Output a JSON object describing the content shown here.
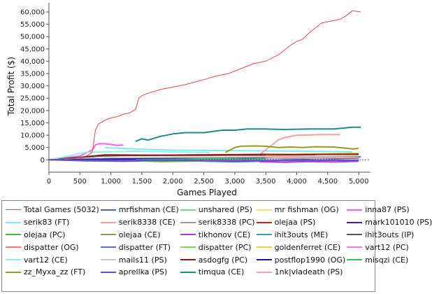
{
  "chart_data": {
    "type": "line",
    "xlabel": "Games Played",
    "ylabel": "Total Profit ($)",
    "xlim": [
      0,
      5100
    ],
    "ylim": [
      -2200,
      62000
    ],
    "x_ticks": [
      0,
      500,
      1000,
      1500,
      2000,
      2500,
      3000,
      3500,
      4000,
      4500,
      5000
    ],
    "x_tick_labels": [
      "0",
      "500",
      "1,000",
      "1,500",
      "2,000",
      "2,500",
      "3,000",
      "3,500",
      "4,000",
      "4,500",
      "5,000"
    ],
    "y_ticks": [
      0,
      5000,
      10000,
      15000,
      20000,
      25000,
      30000,
      35000,
      40000,
      45000,
      50000,
      55000,
      60000
    ],
    "y_tick_labels": [
      "0",
      "5,000",
      "10,000",
      "15,000",
      "20,000",
      "25,000",
      "30,000",
      "35,000",
      "40,000",
      "45,000",
      "50,000",
      "55,000",
      "60,000"
    ],
    "grid": false,
    "legend_position": "bottom",
    "series": [
      {
        "name": "Total Games (5032)",
        "color": "#e8474a",
        "x": [
          0,
          200,
          400,
          600,
          700,
          750,
          800,
          900,
          1000,
          1100,
          1200,
          1300,
          1400,
          1450,
          1500,
          1600,
          1800,
          2000,
          2200,
          2500,
          2700,
          2900,
          3100,
          3300,
          3500,
          3700,
          3800,
          3900,
          4000,
          4100,
          4200,
          4300,
          4400,
          4500,
          4700,
          4800,
          4900,
          5032
        ],
        "values": [
          0,
          0,
          500,
          1500,
          3000,
          12000,
          14500,
          16000,
          17000,
          17500,
          18500,
          19000,
          20500,
          25000,
          26000,
          27000,
          28500,
          29500,
          30500,
          32500,
          34000,
          35000,
          37000,
          39000,
          40000,
          42500,
          44500,
          46500,
          48000,
          49000,
          51500,
          53500,
          55500,
          56000,
          57000,
          58500,
          60500,
          60000
        ]
      },
      {
        "name": "mrfishman (CE)",
        "color": "#4a5be0",
        "x": [
          0,
          600,
          1200,
          2000,
          3000,
          3500,
          4000,
          4500,
          5032
        ],
        "values": [
          0,
          -400,
          -600,
          -300,
          -800,
          -500,
          200,
          700,
          1200
        ]
      },
      {
        "name": "unshared (PS)",
        "color": "#6fe36f",
        "x": [
          0,
          800,
          1600,
          2500,
          3400,
          4200,
          5000
        ],
        "values": [
          0,
          300,
          200,
          500,
          400,
          700,
          900
        ]
      },
      {
        "name": "mr fishman (OG)",
        "color": "#ffe066",
        "x": [
          0,
          1000,
          2000,
          3000,
          4000,
          5000
        ],
        "values": [
          0,
          500,
          600,
          700,
          900,
          1100
        ]
      },
      {
        "name": "inna87 (PS)",
        "color": "#ff5fe6",
        "x": [
          0,
          500,
          700,
          750,
          800,
          900,
          1000,
          1100,
          1200
        ],
        "values": [
          0,
          1500,
          4000,
          6000,
          6500,
          6500,
          6200,
          5800,
          6000
        ]
      },
      {
        "name": "serik83 (FT)",
        "color": "#7fe9ef",
        "x": [
          900,
          1000,
          1300,
          1600,
          2000,
          2500,
          3000,
          3500,
          4000,
          4600,
          4900
        ],
        "values": [
          5000,
          4800,
          4500,
          4200,
          3900,
          3800,
          3700,
          3600,
          3500,
          3300,
          3200
        ]
      },
      {
        "name": "serik8338 (CE)",
        "color": "#f5a0a0",
        "x": [
          3400,
          3600,
          3700,
          3800,
          4000,
          4200,
          4400,
          4600,
          4700
        ],
        "values": [
          2000,
          6000,
          8000,
          9000,
          10000,
          10100,
          10200,
          10200,
          10200
        ]
      },
      {
        "name": "serik8338 (PC)",
        "color": "#9a9a9a",
        "x": [
          0,
          500,
          1000,
          1500,
          2000,
          2500,
          3000,
          3500,
          4000,
          4500,
          5000
        ],
        "values": [
          0,
          300,
          600,
          700,
          800,
          900,
          1000,
          1100,
          1200,
          1300,
          1400
        ]
      },
      {
        "name": "olejaa (PS)",
        "color": "#d92020",
        "x": [
          1000,
          1500,
          2000,
          2500,
          3000,
          3500,
          4000,
          4300
        ],
        "values": [
          2000,
          1900,
          1800,
          1800,
          1900,
          1900,
          2000,
          2100
        ]
      },
      {
        "name": "mark101010 (PS)",
        "color": "#4a1aa8",
        "x": [
          0,
          700,
          1400,
          2200,
          3000,
          3800,
          4600,
          5000
        ],
        "values": [
          0,
          200,
          400,
          300,
          500,
          600,
          500,
          700
        ]
      },
      {
        "name": "olejaa (PC)",
        "color": "#3fbf3f",
        "x": [
          1500,
          1800,
          2200,
          2600,
          3000,
          3400
        ],
        "values": [
          -500,
          -700,
          -600,
          -400,
          -500,
          -300
        ]
      },
      {
        "name": "olejaa (CE)",
        "color": "#8a9a5a",
        "x": [
          0,
          1000,
          2000,
          3000,
          4000,
          5000
        ],
        "values": [
          0,
          200,
          400,
          500,
          600,
          700
        ]
      },
      {
        "name": "tikhonov (CE)",
        "color": "#b43ad6",
        "x": [
          3400,
          3800,
          4200,
          4600,
          5000
        ],
        "values": [
          -800,
          -1000,
          -700,
          -900,
          -600
        ]
      },
      {
        "name": "ihit3outs (ME)",
        "color": "#2fa8a8",
        "x": [
          0,
          1000,
          2000,
          3000,
          4000,
          5000
        ],
        "values": [
          0,
          400,
          500,
          600,
          800,
          1000
        ]
      },
      {
        "name": "ihit3outs (IP)",
        "color": "#555555",
        "x": [
          0,
          400,
          800,
          1200,
          1600,
          2000,
          2400,
          2800,
          3200,
          3600,
          4000,
          4400,
          4800,
          5000
        ],
        "values": [
          0,
          800,
          1500,
          1700,
          1800,
          1900,
          2000,
          2000,
          2000,
          2100,
          2200,
          2200,
          2300,
          2300
        ]
      },
      {
        "name": "dispatter (OG)",
        "color": "#ff7070",
        "x": [
          0,
          1000,
          2000,
          3000,
          4000,
          5000
        ],
        "values": [
          0,
          -200,
          -300,
          -200,
          -300,
          -100
        ]
      },
      {
        "name": "dispatter (FT)",
        "color": "#5a6bd6",
        "x": [
          0,
          1000,
          2000,
          3000,
          4000,
          5000
        ],
        "values": [
          0,
          600,
          800,
          700,
          900,
          800
        ]
      },
      {
        "name": "dispatter (PC)",
        "color": "#7ed957",
        "x": [
          0,
          1000,
          2000,
          3000,
          4000,
          5000
        ],
        "values": [
          0,
          300,
          500,
          400,
          600,
          800
        ]
      },
      {
        "name": "goldenferret (CE)",
        "color": "#e6d63a",
        "x": [
          3500,
          4000,
          4500,
          5000
        ],
        "values": [
          2000,
          2300,
          2500,
          2700
        ]
      },
      {
        "name": "vart12 (PC)",
        "color": "#f07ae0",
        "x": [
          0,
          800,
          1600,
          2400,
          3200,
          4000,
          4800
        ],
        "values": [
          0,
          400,
          500,
          600,
          700,
          800,
          900
        ]
      },
      {
        "name": "vart12 (CE)",
        "color": "#8ff0ea",
        "x": [
          0,
          600,
          1400,
          2000,
          2600
        ],
        "values": [
          0,
          3000,
          3500,
          3200,
          3000
        ]
      },
      {
        "name": "mails11 (PS)",
        "color": "#c8c8c8",
        "x": [
          0,
          1000,
          2000,
          3000,
          4000,
          5000
        ],
        "values": [
          0,
          500,
          700,
          900,
          1100,
          1200
        ]
      },
      {
        "name": "asdogfg (PC)",
        "color": "#8b1a1a",
        "x": [
          500,
          900,
          1500,
          2000,
          2500,
          3000,
          3500,
          4000,
          4500,
          5000
        ],
        "values": [
          1000,
          2000,
          1800,
          1900,
          2000,
          2100,
          2200,
          2100,
          2200,
          2300
        ]
      },
      {
        "name": "postflop1990 (OG)",
        "color": "#1a1a80",
        "x": [
          0,
          1000,
          2000,
          3000,
          4000,
          5000
        ],
        "values": [
          0,
          300,
          400,
          500,
          700,
          900
        ]
      },
      {
        "name": "misqzi (CE)",
        "color": "#35c05a",
        "x": [
          1400,
          2000,
          2600,
          3200,
          3800,
          4400,
          5000
        ],
        "values": [
          0,
          200,
          400,
          300,
          600,
          900,
          1200
        ]
      },
      {
        "name": "zz_Myxa_zz (FT)",
        "color": "#9a9a1a",
        "x": [
          2850,
          3000,
          3100,
          3300,
          3500,
          3700,
          3900,
          4100,
          4300,
          4600,
          4900,
          5000
        ],
        "values": [
          3000,
          5000,
          5500,
          5600,
          5500,
          5000,
          5200,
          5000,
          5300,
          5200,
          4400,
          4600
        ]
      },
      {
        "name": "aprellka (PS)",
        "color": "#6a4ad6",
        "x": [
          0,
          1000,
          2000,
          3000,
          4000,
          5000
        ],
        "values": [
          0,
          -300,
          -200,
          -400,
          -300,
          -200
        ]
      },
      {
        "name": "timqua (CE)",
        "color": "#1e8c86",
        "x": [
          1400,
          1500,
          1600,
          1800,
          2000,
          2200,
          2500,
          2800,
          3000,
          3200,
          3500,
          3800,
          4200,
          4600,
          4900,
          5032
        ],
        "values": [
          7500,
          8500,
          8000,
          9500,
          10500,
          11000,
          11000,
          12000,
          12000,
          12500,
          12500,
          12300,
          12500,
          12500,
          13200,
          13200
        ]
      },
      {
        "name": "1nk|vladeath (PS)",
        "color": "#f0a0b0",
        "x": [
          3500,
          3800,
          4200,
          4600,
          5000
        ],
        "values": [
          500,
          800,
          700,
          900,
          1000
        ]
      }
    ]
  }
}
